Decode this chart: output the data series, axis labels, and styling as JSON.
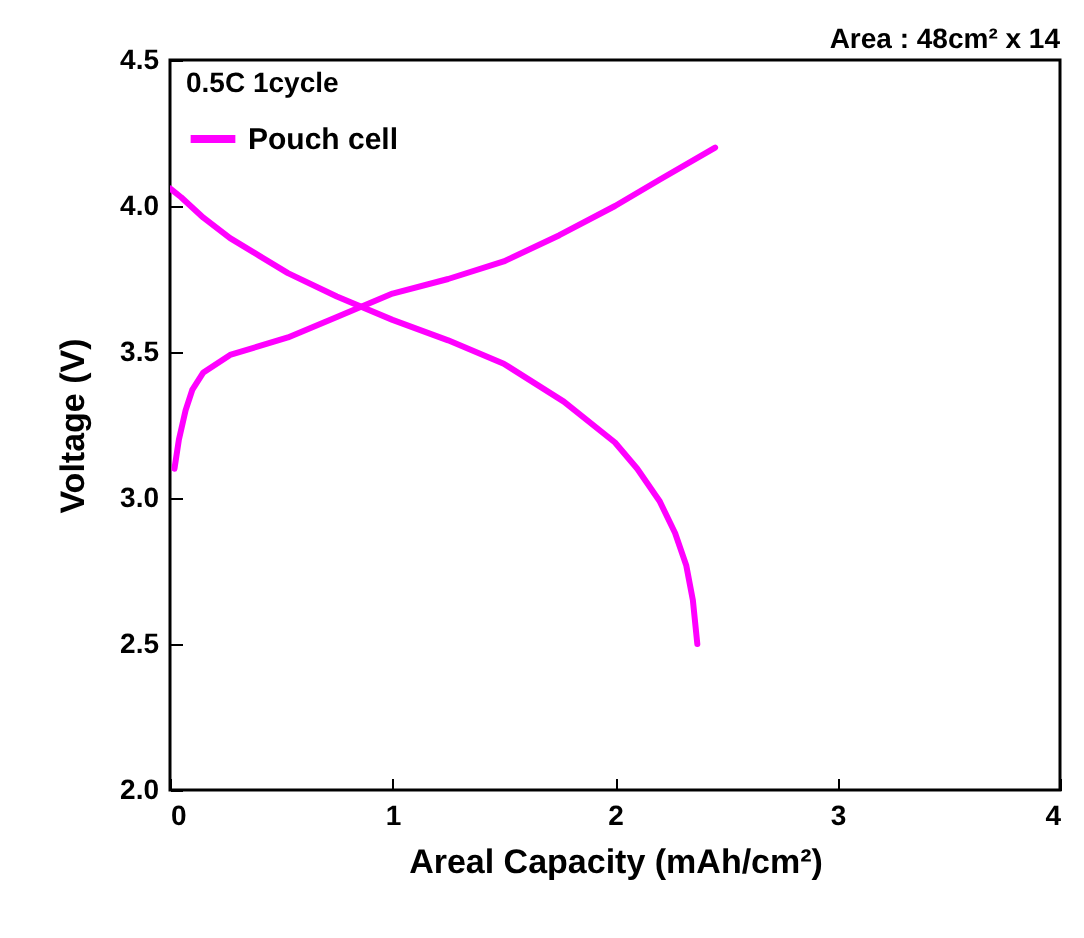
{
  "chart_data": {
    "type": "line",
    "xlabel": "Areal Capacity (mAh/cm²)",
    "ylabel": "Voltage (V)",
    "xlim": [
      0,
      4
    ],
    "ylim": [
      2.0,
      4.5
    ],
    "xticks": [
      0,
      1,
      2,
      3,
      4
    ],
    "yticks": [
      {
        "value": 2.0,
        "label": "2.0"
      },
      {
        "value": 2.5,
        "label": "2.5"
      },
      {
        "value": 3.0,
        "label": "3.0"
      },
      {
        "value": 3.5,
        "label": "3.5"
      },
      {
        "value": 4.0,
        "label": "4.0"
      },
      {
        "value": 4.5,
        "label": "4.5"
      }
    ],
    "legend": "top left",
    "annotations": [
      "0.5C 1cycle",
      "Area : 48cm² x 14"
    ],
    "series": [
      {
        "name": "Pouch cell",
        "color": "#ff00ff",
        "x": [
          0.02,
          0.04,
          0.07,
          0.1,
          0.15,
          0.27,
          0.4,
          0.53,
          0.75,
          1.0,
          1.25,
          1.5,
          1.75,
          2.0,
          2.2,
          2.45
        ],
        "values": [
          3.1,
          3.2,
          3.3,
          3.37,
          3.43,
          3.49,
          3.52,
          3.55,
          3.62,
          3.7,
          3.75,
          3.81,
          3.9,
          4.0,
          4.09,
          4.2
        ]
      },
      {
        "color": "#ff00ff",
        "x": [
          0.0,
          0.05,
          0.15,
          0.27,
          0.4,
          0.53,
          0.75,
          1.0,
          1.25,
          1.5,
          1.77,
          2.0,
          2.1,
          2.2,
          2.27,
          2.32,
          2.35,
          2.37
        ],
        "values": [
          4.06,
          4.03,
          3.96,
          3.89,
          3.83,
          3.77,
          3.69,
          3.61,
          3.54,
          3.46,
          3.33,
          3.19,
          3.1,
          2.99,
          2.88,
          2.77,
          2.65,
          2.5
        ]
      }
    ]
  }
}
